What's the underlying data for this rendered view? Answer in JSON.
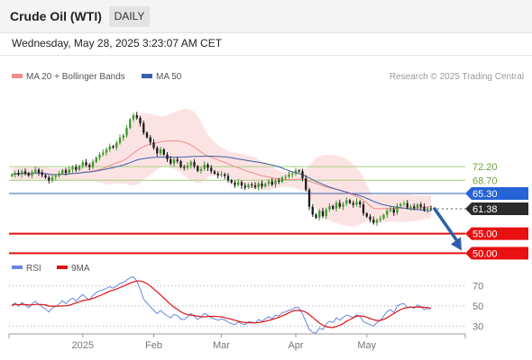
{
  "header": {
    "title": "Crude Oil (WTI)",
    "timeframe": "DAILY",
    "datetime": "Wednesday, May 28, 2025 3:23:07 AM CET",
    "credit": "Research © 2025 Trading Central"
  },
  "legend": {
    "ma20": {
      "label": "MA 20 + Bollinger Bands",
      "color": "#f08c8c"
    },
    "ma50": {
      "label": "MA 50",
      "color": "#3a5fa8"
    },
    "rsi": {
      "label": "RSI",
      "color": "#6688dd"
    },
    "rsi_ma": {
      "label": "9MA",
      "color": "#e01010"
    }
  },
  "chart_data": [
    {
      "type": "candlestick",
      "title": "Crude Oil (WTI)",
      "timeframe": "DAILY",
      "x_ticks": [
        "2025",
        "Feb",
        "Mar",
        "Apr",
        "May"
      ],
      "ylim": [
        48,
        93
      ],
      "levels": [
        {
          "value": 72.2,
          "label": "72.20",
          "style": "green-line"
        },
        {
          "value": 68.7,
          "label": "68.70",
          "style": "green-line"
        },
        {
          "value": 65.3,
          "label": "65.30",
          "style": "blue-line-blue-tag"
        },
        {
          "value": 61.38,
          "label": "61.38",
          "style": "dotted-dark-tag"
        },
        {
          "value": 55.0,
          "label": "55.00",
          "style": "red-line-red-tag"
        },
        {
          "value": 50.0,
          "label": "50.00",
          "style": "red-line-red-tag"
        }
      ],
      "current_price": 61.38,
      "forecast_arrow": {
        "from": 61.38,
        "to": 50.0,
        "color": "#2d5fa8"
      },
      "series": [
        {
          "name": "MA 20 + Bollinger Bands",
          "color": "#f08c8c"
        },
        {
          "name": "MA 50",
          "color": "#3a5fa8"
        }
      ],
      "closes": [
        70.1,
        70.6,
        70.2,
        71.0,
        70.5,
        69.9,
        70.8,
        71.4,
        70.7,
        70.0,
        69.4,
        68.6,
        69.5,
        69.9,
        70.4,
        71.3,
        70.6,
        71.5,
        72.1,
        71.4,
        72.4,
        73.3,
        72.6,
        72.1,
        73.4,
        74.5,
        75.3,
        75.8,
        76.6,
        77.4,
        77.1,
        78.3,
        79.6,
        80.2,
        82.1,
        84.3,
        85.4,
        84.7,
        83.3,
        80.9,
        79.7,
        78.4,
        77.0,
        75.6,
        76.6,
        75.3,
        74.1,
        73.0,
        74.0,
        73.6,
        72.1,
        71.9,
        72.5,
        73.4,
        72.3,
        71.1,
        71.6,
        72.7,
        71.9,
        71.0,
        70.4,
        69.9,
        70.2,
        69.8,
        68.7,
        68.1,
        67.5,
        68.2,
        67.3,
        66.8,
        67.6,
        67.4,
        66.9,
        67.9,
        67.1,
        67.8,
        68.4,
        67.6,
        68.6,
        68.3,
        69.4,
        69.6,
        70.2,
        70.4,
        71.2,
        71.0,
        69.2,
        66.3,
        61.9,
        59.9,
        59.1,
        60.8,
        59.5,
        61.2,
        62.1,
        61.4,
        62.9,
        61.9,
        62.7,
        63.6,
        62.9,
        62.4,
        63.2,
        62.5,
        60.2,
        59.4,
        58.6,
        57.8,
        58.5,
        58.9,
        59.8,
        60.9,
        61.3,
        60.4,
        62.1,
        62.6,
        62.8,
        61.7,
        62.0,
        61.6,
        62.5,
        61.9,
        61.1,
        61.5,
        61.4
      ],
      "ma20": [
        70.1,
        70.35,
        70.3,
        70.48,
        70.48,
        70.38,
        70.44,
        70.56,
        70.57,
        70.51,
        70.41,
        70.26,
        70.18,
        70.16,
        70.17,
        70.24,
        70.26,
        70.33,
        70.43,
        70.48,
        70.59,
        70.73,
        70.85,
        70.9,
        71.05,
        71.27,
        71.5,
        71.74,
        72.05,
        72.42,
        72.8,
        73.13,
        73.45,
        73.78,
        74.28,
        74.93,
        75.65,
        76.31,
        76.9,
        77.33,
        77.7,
        77.95,
        78.16,
        78.34,
        78.55,
        78.66,
        78.73,
        78.79,
        78.81,
        78.79,
        78.7,
        78.47,
        78.12,
        77.72,
        77.24,
        76.58,
        75.91,
        75.33,
        74.87,
        74.6,
        74.23,
        73.91,
        73.57,
        73.28,
        72.89,
        72.52,
        72.19,
        71.94,
        71.6,
        71.23,
        70.95,
        70.7,
        70.41,
        70.14,
        69.89,
        69.7,
        69.55,
        69.3,
        69.17,
        69.03,
        68.96,
        68.9,
        68.89,
        68.87,
        68.95,
        69.0,
        68.9,
        68.74,
        68.45,
        68.13,
        67.88,
        67.55,
        67.26,
        66.97,
        66.75,
        66.58,
        66.39,
        66.19,
        65.89,
        65.6,
        65.22,
        64.87,
        64.51,
        64.15,
        63.58,
        62.9,
        62.12,
        61.51,
        61.39,
        61.43,
        61.46,
        61.47,
        61.56,
        61.5,
        61.52,
        61.51,
        61.51,
        61.52,
        61.54,
        61.52,
        61.6,
        61.66,
        61.73,
        61.86,
        61.9
      ],
      "ma50": [
        70.1,
        70.35,
        70.3,
        70.48,
        70.48,
        70.38,
        70.44,
        70.56,
        70.57,
        70.51,
        70.41,
        70.26,
        70.18,
        70.16,
        70.17,
        70.24,
        70.26,
        70.33,
        70.43,
        70.48,
        70.57,
        70.69,
        70.77,
        70.83,
        70.93,
        71.07,
        71.23,
        71.4,
        71.58,
        71.78,
        71.95,
        72.15,
        72.38,
        72.61,
        72.9,
        73.23,
        73.56,
        73.86,
        74.1,
        74.26,
        74.39,
        74.49,
        74.55,
        74.58,
        74.63,
        74.65,
        74.64,
        74.61,
        74.6,
        74.6,
        74.63,
        74.66,
        74.71,
        74.76,
        74.8,
        74.82,
        74.84,
        74.87,
        74.89,
        74.89,
        74.85,
        74.79,
        74.74,
        74.69,
        74.6,
        74.47,
        74.31,
        74.18,
        74.03,
        73.86,
        73.74,
        73.6,
        73.46,
        73.32,
        73.15,
        72.96,
        72.8,
        72.6,
        72.4,
        72.14,
        71.83,
        71.46,
        71.16,
        70.87,
        70.61,
        70.4,
        70.1,
        69.73,
        69.29,
        68.85,
        68.4,
        68.03,
        67.63,
        67.28,
        66.97,
        66.68,
        66.39,
        66.13,
        65.88,
        65.67,
        65.43,
        65.19,
        64.96,
        64.73,
        64.43,
        64.07,
        63.69,
        63.3,
        62.95,
        62.66,
        62.42,
        62.21,
        62.05,
        61.89,
        61.79,
        61.69,
        61.58,
        61.46,
        61.35,
        61.26,
        61.18,
        61.08,
        60.97,
        60.9,
        60.85
      ]
    },
    {
      "type": "line",
      "title": "RSI",
      "ylim": [
        25,
        75
      ],
      "y_ticks": [
        "70",
        "50",
        "30"
      ],
      "series": [
        {
          "name": "RSI",
          "color": "#6688dd",
          "values": [
            50.6,
            53.0,
            49.9,
            53.4,
            50.9,
            48.4,
            52.2,
            54.6,
            51.6,
            49.0,
            46.9,
            44.1,
            48.0,
            49.7,
            51.8,
            55.3,
            52.3,
            55.8,
            57.9,
            54.8,
            58.5,
            61.4,
            58.2,
            56.1,
            60.4,
            63.3,
            65.0,
            66.0,
            67.6,
            69.1,
            67.6,
            70.0,
            72.3,
            73.2,
            75.7,
            78.0,
            78.9,
            74.6,
            67.0,
            56.9,
            52.9,
            49.2,
            45.6,
            42.4,
            45.7,
            42.7,
            40.2,
            38.2,
            41.7,
            40.6,
            37.0,
            36.6,
            39.1,
            42.6,
            39.6,
            36.7,
            38.8,
            42.8,
            40.7,
            38.4,
            37.1,
            36.0,
            37.1,
            36.2,
            33.8,
            32.6,
            31.4,
            34.2,
            32.4,
            31.4,
            34.5,
            34.0,
            33.0,
            36.6,
            34.8,
            37.3,
            39.4,
            37.6,
            40.9,
            40.1,
            43.5,
            44.1,
            45.9,
            46.5,
            48.8,
            48.1,
            42.0,
            34.4,
            26.6,
            23.9,
            23.0,
            28.4,
            26.4,
            32.1,
            34.9,
            33.5,
            38.2,
            36.0,
            38.5,
            41.2,
            39.7,
            38.6,
            41.3,
            39.6,
            34.5,
            32.9,
            31.5,
            30.0,
            33.6,
            35.6,
            40.0,
            44.7,
            46.3,
            43.6,
            50.1,
            51.8,
            52.4,
            48.2,
            49.3,
            47.8,
            51.1,
            48.9,
            46.3,
            47.7,
            47.4
          ]
        },
        {
          "name": "9MA",
          "color": "#e01010",
          "values": [
            50.6,
            51.8,
            51.2,
            51.7,
            51.5,
            51.0,
            51.2,
            51.6,
            51.6,
            51.4,
            51.0,
            49.9,
            49.9,
            49.8,
            49.9,
            50.1,
            50.2,
            50.7,
            51.9,
            53.1,
            54.3,
            55.4,
            56.0,
            56.7,
            57.4,
            58.8,
            60.3,
            61.6,
            63.2,
            64.8,
            65.7,
            66.8,
            68.3,
            69.7,
            71.2,
            72.6,
            73.9,
            74.8,
            74.8,
            73.8,
            72.2,
            69.8,
            66.9,
            63.9,
            61.0,
            57.8,
            54.6,
            51.5,
            48.9,
            46.7,
            44.3,
            42.4,
            41.4,
            40.9,
            40.5,
            40.0,
            39.3,
            39.1,
            39.6,
            39.7,
            39.7,
            39.5,
            39.2,
            38.3,
            37.7,
            36.8,
            35.9,
            34.9,
            34.1,
            33.6,
            33.4,
            33.3,
            33.3,
            33.6,
            34.1,
            34.8,
            35.6,
            36.6,
            37.7,
            38.8,
            40.1,
            41.6,
            43.4,
            44.8,
            45.6,
            45.6,
            45.2,
            43.8,
            41.4,
            38.7,
            35.9,
            33.1,
            30.9,
            29.5,
            28.9,
            28.6,
            29.7,
            30.9,
            32.4,
            34.8,
            36.5,
            38.4,
            39.8,
            40.1,
            39.9,
            38.9,
            37.6,
            36.3,
            35.6,
            35.7,
            36.8,
            38.3,
            40.5,
            42.4,
            44.6,
            46.4,
            47.8,
            48.4,
            48.8,
            48.8,
            49.0,
            49.1,
            48.6,
            48.4,
            47.7
          ]
        }
      ]
    }
  ]
}
